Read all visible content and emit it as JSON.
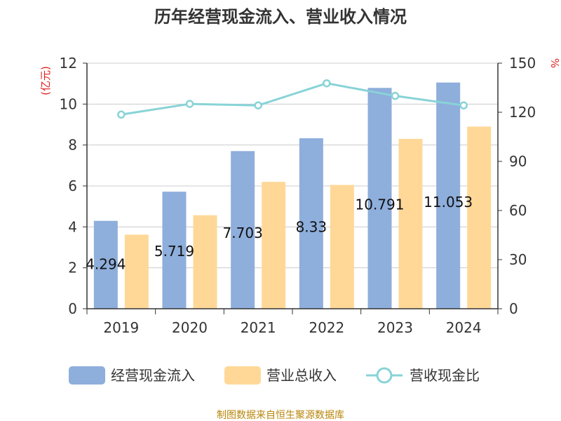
{
  "chart_data": {
    "type": "bar",
    "title": "历年经营现金流入、营业收入情况",
    "categories": [
      "2019",
      "2020",
      "2021",
      "2022",
      "2023",
      "2024"
    ],
    "series": [
      {
        "name": "经营现金流入",
        "type": "bar",
        "axis": "left",
        "color": "#8eaedc",
        "values": [
          4.294,
          5.719,
          7.703,
          8.33,
          10.791,
          11.053
        ],
        "labels": [
          "4.294",
          "5.719",
          "7.703",
          "8.33",
          "10.791",
          "11.053"
        ]
      },
      {
        "name": "营业总收入",
        "type": "bar",
        "axis": "left",
        "color": "#ffd898",
        "values": [
          3.62,
          4.57,
          6.2,
          6.05,
          8.3,
          8.9
        ]
      },
      {
        "name": "营收现金比",
        "type": "line",
        "axis": "right",
        "color": "#88d3d7",
        "values": [
          118.6,
          125.1,
          124.2,
          137.7,
          130.0,
          124.2
        ]
      }
    ],
    "left_axis": {
      "unit": "(亿元)",
      "min": 0,
      "max": 12,
      "ticks": [
        "0",
        "2",
        "4",
        "6",
        "8",
        "10",
        "12"
      ]
    },
    "right_axis": {
      "unit": "%",
      "min": 0,
      "max": 150,
      "ticks": [
        "0",
        "30",
        "60",
        "90",
        "120",
        "150"
      ]
    },
    "grid": true,
    "legend_position": "bottom"
  },
  "source": "制图数据来自恒生聚源数据库"
}
